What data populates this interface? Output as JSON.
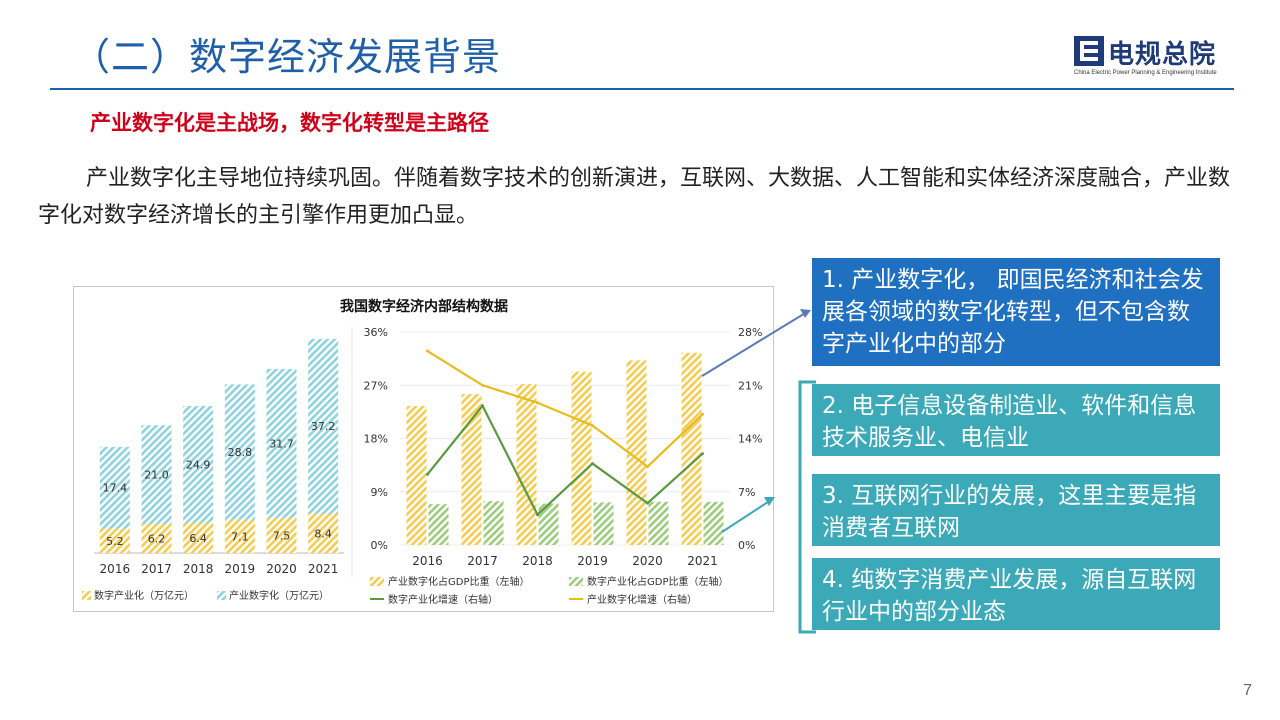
{
  "header": {
    "title": "（二）数字经济发展背景",
    "logo_cn": "电规总院",
    "logo_en": "China Electric Power Planning & Engineering Institute"
  },
  "subheading": "产业数字化是主战场，数字化转型是主路径",
  "paragraph": "产业数字化主导地位持续巩固。伴随着数字技术的创新演进，互联网、大数据、人工智能和实体经济深度融合，产业数字化对数字经济增长的主引擎作用更加凸显。",
  "callouts": [
    "1. 产业数字化， 即国民经济和社会发展各领域的数字化转型，但不包含数字产业化中的部分",
    "2. 电子信息设备制造业、软件和信息技术服务业、电信业",
    "3. 互联网行业的发展，这里主要是指消费者互联网",
    "4. 纯数字消费产业发展，源自互联网行业中的部分业态"
  ],
  "page_number": "7",
  "colors": {
    "title_blue": "#1f5fa8",
    "subhead_red": "#d0021b",
    "callout_blue": "#1f70c1",
    "callout_teal": "#3ba9b8",
    "digital_industry": "#f4cc52",
    "industry_digital": "#8fd3df",
    "green_line": "#5a9a3c",
    "yellow_line": "#e8bb1e"
  },
  "chart_data": [
    {
      "type": "bar",
      "stacked": true,
      "title": "我国数字经济内部结构数据",
      "categories": [
        "2016",
        "2017",
        "2018",
        "2019",
        "2020",
        "2021"
      ],
      "series": [
        {
          "name": "数字产业化（万亿元）",
          "values": [
            5.2,
            6.2,
            6.4,
            7.1,
            7.5,
            8.4
          ]
        },
        {
          "name": "产业数字化（万亿元）",
          "values": [
            17.4,
            21.0,
            24.9,
            28.8,
            31.7,
            37.2
          ]
        }
      ],
      "value_labels": [
        [
          "5.2",
          "6.2",
          "6.4",
          "7.1",
          "7.5",
          "8.4"
        ],
        [
          "17.4",
          "21.0",
          "24.9",
          "28.8",
          "31.7",
          "37.2"
        ]
      ],
      "ylim": [
        0,
        46
      ],
      "legend_position": "bottom"
    },
    {
      "type": "bar",
      "categories": [
        "2016",
        "2017",
        "2018",
        "2019",
        "2020",
        "2021"
      ],
      "y_left_ticks": [
        "0%",
        "9%",
        "18%",
        "27%",
        "36%"
      ],
      "y_left_range": [
        0,
        36
      ],
      "y_right_ticks": [
        "0%",
        "7%",
        "14%",
        "21%",
        "28%"
      ],
      "y_right_range": [
        0,
        28
      ],
      "bars": [
        {
          "name": "产业数字化占GDP比重（左轴）",
          "values": [
            23.5,
            25.5,
            27.2,
            29.3,
            31.2,
            32.5
          ]
        },
        {
          "name": "数字产业化占GDP比重（左轴）",
          "values": [
            6.9,
            7.4,
            7.0,
            7.2,
            7.3,
            7.3
          ]
        }
      ],
      "lines": [
        {
          "name": "数字产业化增速（右轴）",
          "values": [
            9.3,
            18.3,
            4.0,
            10.7,
            5.5,
            12.0
          ]
        },
        {
          "name": "产业数字化增速（右轴）",
          "values": [
            25.5,
            21.0,
            18.7,
            15.7,
            10.3,
            17.2
          ]
        }
      ],
      "legend_position": "bottom"
    }
  ]
}
